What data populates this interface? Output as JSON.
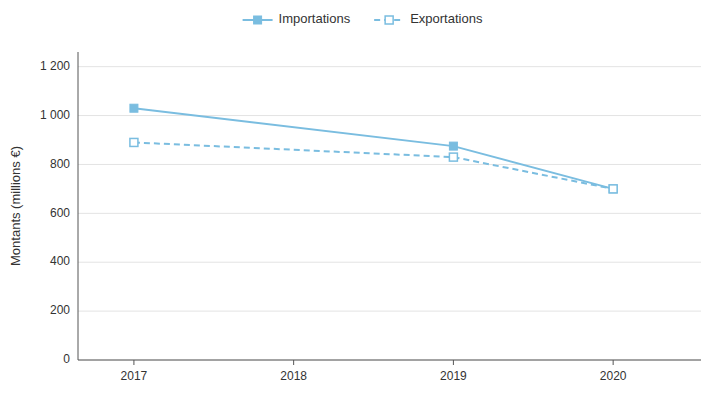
{
  "chart_data": {
    "type": "line",
    "x": [
      2017,
      2019,
      2020
    ],
    "series": [
      {
        "name": "Importations",
        "color": "#7abde0",
        "values": [
          1030,
          875,
          700
        ],
        "marker": "square",
        "line_style": "solid"
      },
      {
        "name": "Exportations",
        "color": "#7abde0",
        "values": [
          890,
          830,
          700
        ],
        "marker": "square-open",
        "line_style": "dashed"
      }
    ],
    "ylabel": "Montants (millions €)",
    "xlim": [
      2016.65,
      2020.55
    ],
    "xticks": [
      2017,
      2018,
      2019,
      2020
    ],
    "ylim": [
      0,
      1260
    ],
    "yticks": [
      0,
      200,
      400,
      600,
      800,
      {
        "value": 1000,
        "label": "1 000"
      },
      {
        "value": 1200,
        "label": "1 200"
      }
    ],
    "grid": true,
    "legend": "top"
  }
}
